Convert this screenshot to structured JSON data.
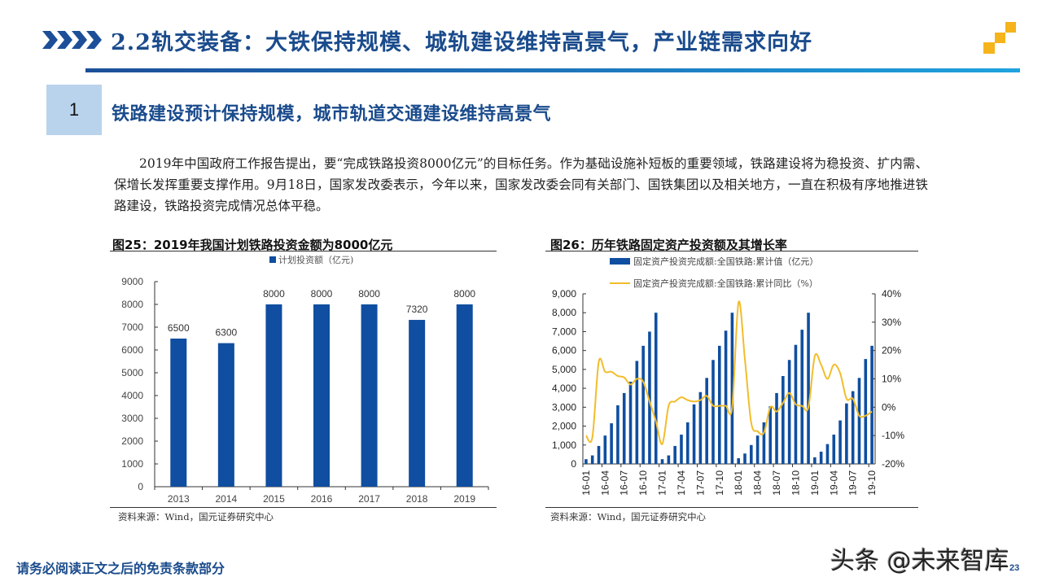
{
  "header": {
    "title": "2.2轨交装备：大铁保持规模、城轨建设维持高景气，产业链需求向好",
    "accent_color": "#1a4b8c",
    "logo_color": "#f5b31c"
  },
  "section": {
    "number": "1",
    "title": "铁路建设预计保持规模，城市轨道交通建设维持高景气"
  },
  "paragraph": "2019年中国政府工作报告提出，要“完成铁路投资8000亿元”的目标任务。作为基础设施补短板的重要领域，铁路建设将为稳投资、扩内需、保增长发挥重要支撑作用。9月18日，国家发改委表示，今年以来，国家发改委会同有关部门、国铁集团以及相关地方，一直在积极有序地推进铁路建设，铁路投资完成情况总体平稳。",
  "figures": [
    {
      "title": "图25：2019年我国计划铁路投资金额为8000亿元",
      "source": "资料来源：Wind，国元证券研究中心"
    },
    {
      "title": "图26：历年铁路固定资产投资额及其增长率",
      "source": "资料来源：Wind，国元证券研究中心"
    }
  ],
  "chart_data": [
    {
      "type": "bar",
      "title": "图25：2019年我国计划铁路投资金额为8000亿元",
      "legend": [
        "计划投资额（亿元)"
      ],
      "categories": [
        "2013",
        "2014",
        "2015",
        "2016",
        "2017",
        "2018",
        "2019"
      ],
      "values": [
        6500,
        6300,
        8000,
        8000,
        8000,
        7320,
        8000
      ],
      "data_labels": [
        "6500",
        "6300",
        "8000",
        "8000",
        "8000",
        "7320",
        "8000"
      ],
      "yticks": [
        "0",
        "1000",
        "2000",
        "3000",
        "4000",
        "5000",
        "6000",
        "7000",
        "8000",
        "9000"
      ],
      "ylim": [
        0,
        9000
      ],
      "xlabel": "",
      "ylabel": "",
      "color": "#0f4ea0",
      "legend_position": "top"
    },
    {
      "type": "bar+line",
      "title": "图26：历年铁路固定资产投资额及其增长率",
      "x": [
        "16-01",
        "16-02",
        "16-03",
        "16-04",
        "16-05",
        "16-06",
        "16-07",
        "16-08",
        "16-09",
        "16-10",
        "16-11",
        "16-12",
        "17-01",
        "17-02",
        "17-03",
        "17-04",
        "17-05",
        "17-06",
        "17-07",
        "17-08",
        "17-09",
        "17-10",
        "17-11",
        "17-12",
        "18-01",
        "18-02",
        "18-03",
        "18-04",
        "18-05",
        "18-06",
        "18-07",
        "18-08",
        "18-09",
        "18-10",
        "18-11",
        "18-12",
        "19-01",
        "19-02",
        "19-03",
        "19-04",
        "19-05",
        "19-06",
        "19-07",
        "19-08",
        "19-09",
        "19-10"
      ],
      "xticks": [
        "16-01",
        "16-04",
        "16-07",
        "16-10",
        "17-01",
        "17-04",
        "17-07",
        "17-10",
        "18-01",
        "18-04",
        "18-07",
        "18-10",
        "19-01",
        "19-04",
        "19-07",
        "19-10"
      ],
      "series": [
        {
          "name": "固定资产投资完成额:全国铁路:累计值（亿元）",
          "type": "bar",
          "axis": "left",
          "color": "#0f4ea0",
          "values": [
            250,
            450,
            950,
            1500,
            2150,
            3100,
            3750,
            4350,
            5450,
            6250,
            7000,
            8000,
            250,
            450,
            950,
            1550,
            2200,
            3150,
            3800,
            4550,
            5500,
            6250,
            7050,
            8000,
            300,
            550,
            1000,
            1500,
            2200,
            3050,
            3750,
            4650,
            5500,
            6300,
            7100,
            8000,
            350,
            650,
            1050,
            1550,
            2300,
            3200,
            3850,
            4550,
            5550,
            6250
          ]
        },
        {
          "name": "固定资产投资完成额:全国铁路:累计同比（%）",
          "type": "line",
          "axis": "right",
          "color": "#f2bd2c",
          "values": [
            -10,
            -10.5,
            16,
            12.5,
            12.5,
            11,
            10.5,
            8,
            10,
            9,
            2,
            -5,
            -13,
            0.5,
            2,
            3.5,
            2.5,
            2,
            2.5,
            4,
            0.5,
            0.5,
            0.5,
            0,
            37,
            17,
            -5.5,
            -8.5,
            -9,
            0,
            -1.5,
            1.5,
            5,
            1,
            0.5,
            0,
            18,
            15,
            10,
            15,
            12,
            3,
            3,
            -3,
            -3,
            -1.5
          ]
        }
      ],
      "yticks_left": [
        "0",
        "1,000",
        "2,000",
        "3,000",
        "4,000",
        "5,000",
        "6,000",
        "7,000",
        "8,000",
        "9,000"
      ],
      "ylim_left": [
        0,
        9000
      ],
      "yticks_right": [
        "-20%",
        "-10%",
        "0%",
        "10%",
        "20%",
        "30%",
        "40%"
      ],
      "ylim_right": [
        -20,
        40
      ],
      "legend_position": "top"
    }
  ],
  "footer": {
    "disclaimer": "请务必阅读正文之后的免责条款部分",
    "watermark": "头条 @未来智库",
    "page_number": "23"
  }
}
